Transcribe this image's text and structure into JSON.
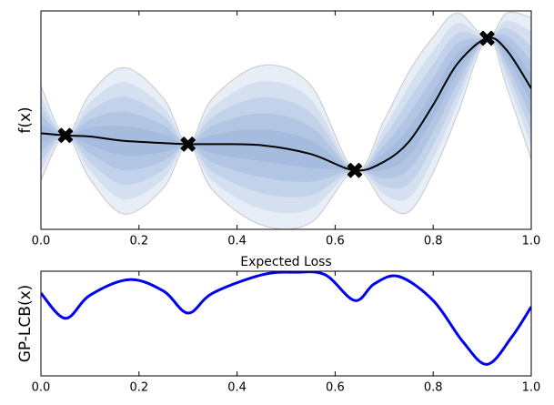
{
  "chart_data": [
    {
      "type": "band",
      "ylabel": "f(x)",
      "x": [
        0,
        0.05,
        0.1,
        0.17,
        0.25,
        0.3,
        0.35,
        0.45,
        0.55,
        0.64,
        0.7,
        0.75,
        0.8,
        0.85,
        0.91,
        0.95,
        1.0
      ],
      "mean": [
        0.44,
        0.43,
        0.425,
        0.405,
        0.395,
        0.39,
        0.39,
        0.385,
        0.345,
        0.27,
        0.31,
        0.4,
        0.57,
        0.76,
        0.875,
        0.82,
        0.645
      ],
      "upper": [
        0.655,
        0.43,
        0.62,
        0.74,
        0.6,
        0.39,
        0.6,
        0.75,
        0.66,
        0.27,
        0.5,
        0.72,
        0.88,
        0.99,
        0.875,
        0.99,
        0.97
      ],
      "lower": [
        0.225,
        0.43,
        0.23,
        0.07,
        0.19,
        0.39,
        0.18,
        0.02,
        0.03,
        0.27,
        0.12,
        0.08,
        0.26,
        0.53,
        0.875,
        0.65,
        0.32
      ],
      "mean_color": "#000000",
      "band_color": "#4a7fc0",
      "bound_color": "#c8c8c8",
      "observations": {
        "x": [
          0.05,
          0.3,
          0.64,
          0.91
        ],
        "y": [
          0.43,
          0.39,
          0.27,
          0.875
        ],
        "color": "#000000"
      },
      "xlim": [
        0,
        1
      ],
      "ylim": [
        0,
        1
      ],
      "xticks": [
        {
          "value": 0,
          "label": "0.0"
        },
        0.2,
        0.4,
        0.6,
        0.8,
        {
          "value": 1,
          "label": "1.0"
        }
      ]
    },
    {
      "type": "line",
      "title": "Expected Loss",
      "ylabel": "GP-LCB(x)",
      "x": [
        0,
        0.05,
        0.1,
        0.18,
        0.25,
        0.3,
        0.35,
        0.45,
        0.52,
        0.58,
        0.64,
        0.68,
        0.73,
        0.8,
        0.86,
        0.91,
        0.96,
        1.0
      ],
      "values": [
        0.79,
        0.55,
        0.77,
        0.92,
        0.81,
        0.6,
        0.79,
        0.965,
        0.99,
        0.965,
        0.72,
        0.88,
        0.95,
        0.72,
        0.33,
        0.11,
        0.37,
        0.66
      ],
      "color": "#0000ee",
      "xlim": [
        0,
        1
      ],
      "ylim": [
        0,
        1
      ],
      "xticks": [
        {
          "value": 0,
          "label": "0.0"
        },
        0.2,
        0.4,
        0.6,
        0.8,
        {
          "value": 1,
          "label": "1.0"
        }
      ]
    }
  ]
}
